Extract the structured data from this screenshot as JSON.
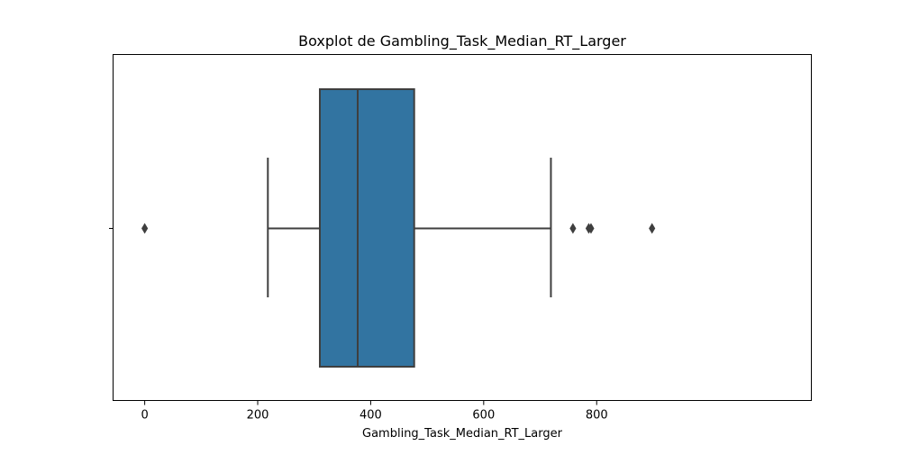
{
  "chart_data": {
    "type": "box",
    "title": "Boxplot de Gambling_Task_Median_RT_Larger",
    "xlabel": "Gambling_Task_Median_RT_Larger",
    "ylabel": "",
    "xlim": [
      -56,
      1180
    ],
    "x_ticks": [
      {
        "value": 0,
        "label": "0"
      },
      {
        "value": 200,
        "label": "200"
      },
      {
        "value": 400,
        "label": "400"
      },
      {
        "value": 600,
        "label": "600"
      },
      {
        "value": 800,
        "label": "800"
      }
    ],
    "grid": false,
    "orientation": "horizontal",
    "box": {
      "whisker_low": 218,
      "q1": 310,
      "median": 377,
      "q3": 477,
      "whisker_high": 719
    },
    "outliers": [
      0,
      758,
      786,
      790,
      898
    ],
    "colors": {
      "box_fill": "#3274a1",
      "line": "#3f3f3f",
      "axis": "#000000"
    }
  }
}
